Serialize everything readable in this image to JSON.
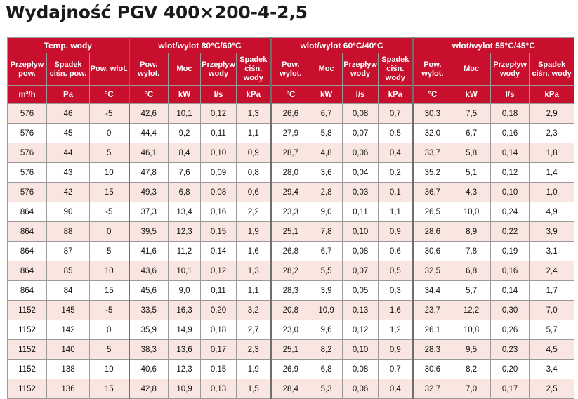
{
  "title": "Wydajność PGV 400×200-4-2,5",
  "header": {
    "groups": [
      "Temp. wody",
      "wlot/wylot 80°C/60°C",
      "wlot/wylot 60°C/40°C",
      "wlot/wylot 55°C/45°C"
    ],
    "columns": [
      "Przepływ pow.",
      "Spadek ciśn. pow.",
      "Pow. wlot.",
      "Pow. wylot.",
      "Moc",
      "Przepływ wody",
      "Spadek ciśn. wody",
      "Pow. wylot.",
      "Moc",
      "Przepływ wody",
      "Spadek ciśn. wody",
      "Pow. wylot.",
      "Moc",
      "Przepływ wody",
      "Spadek ciśn. wody"
    ],
    "units": [
      "m³/h",
      "Pa",
      "°C",
      "°C",
      "kW",
      "l/s",
      "kPa",
      "°C",
      "kW",
      "l/s",
      "kPa",
      "°C",
      "kW",
      "l/s",
      "kPa"
    ]
  },
  "rows": [
    [
      "576",
      "46",
      "-5",
      "42,6",
      "10,1",
      "0,12",
      "1,3",
      "26,6",
      "6,7",
      "0,08",
      "0,7",
      "30,3",
      "7,5",
      "0,18",
      "2,9"
    ],
    [
      "576",
      "45",
      "0",
      "44,4",
      "9,2",
      "0,11",
      "1,1",
      "27,9",
      "5,8",
      "0,07",
      "0,5",
      "32,0",
      "6,7",
      "0,16",
      "2,3"
    ],
    [
      "576",
      "44",
      "5",
      "46,1",
      "8,4",
      "0,10",
      "0,9",
      "28,7",
      "4,8",
      "0,06",
      "0,4",
      "33,7",
      "5,8",
      "0,14",
      "1,8"
    ],
    [
      "576",
      "43",
      "10",
      "47,8",
      "7,6",
      "0,09",
      "0,8",
      "28,0",
      "3,6",
      "0,04",
      "0,2",
      "35,2",
      "5,1",
      "0,12",
      "1,4"
    ],
    [
      "576",
      "42",
      "15",
      "49,3",
      "6,8",
      "0,08",
      "0,6",
      "29,4",
      "2,8",
      "0,03",
      "0,1",
      "36,7",
      "4,3",
      "0,10",
      "1,0"
    ],
    [
      "864",
      "90",
      "-5",
      "37,3",
      "13,4",
      "0,16",
      "2,2",
      "23,3",
      "9,0",
      "0,11",
      "1,1",
      "26,5",
      "10,0",
      "0,24",
      "4,9"
    ],
    [
      "864",
      "88",
      "0",
      "39,5",
      "12,3",
      "0,15",
      "1,9",
      "25,1",
      "7,8",
      "0,10",
      "0,9",
      "28,6",
      "8,9",
      "0,22",
      "3,9"
    ],
    [
      "864",
      "87",
      "5",
      "41,6",
      "11,2",
      "0,14",
      "1,6",
      "26,8",
      "6,7",
      "0,08",
      "0,6",
      "30,6",
      "7,8",
      "0,19",
      "3,1"
    ],
    [
      "864",
      "85",
      "10",
      "43,6",
      "10,1",
      "0,12",
      "1,3",
      "28,2",
      "5,5",
      "0,07",
      "0,5",
      "32,5",
      "6,8",
      "0,16",
      "2,4"
    ],
    [
      "864",
      "84",
      "15",
      "45,6",
      "9,0",
      "0,11",
      "1,1",
      "28,3",
      "3,9",
      "0,05",
      "0,3",
      "34,4",
      "5,7",
      "0,14",
      "1,7"
    ],
    [
      "1152",
      "145",
      "-5",
      "33,5",
      "16,3",
      "0,20",
      "3,2",
      "20,8",
      "10,9",
      "0,13",
      "1,6",
      "23,7",
      "12,2",
      "0,30",
      "7,0"
    ],
    [
      "1152",
      "142",
      "0",
      "35,9",
      "14,9",
      "0,18",
      "2,7",
      "23,0",
      "9,6",
      "0,12",
      "1,2",
      "26,1",
      "10,8",
      "0,26",
      "5,7"
    ],
    [
      "1152",
      "140",
      "5",
      "38,3",
      "13,6",
      "0,17",
      "2,3",
      "25,1",
      "8,2",
      "0,10",
      "0,9",
      "28,3",
      "9,5",
      "0,23",
      "4,5"
    ],
    [
      "1152",
      "138",
      "10",
      "40,6",
      "12,3",
      "0,15",
      "1,9",
      "26,9",
      "6,8",
      "0,08",
      "0,7",
      "30,6",
      "8,2",
      "0,20",
      "3,4"
    ],
    [
      "1152",
      "136",
      "15",
      "42,8",
      "10,9",
      "0,13",
      "1,5",
      "28,4",
      "5,3",
      "0,06",
      "0,4",
      "32,7",
      "7,0",
      "0,17",
      "2,5"
    ]
  ],
  "colors": {
    "header_bg": "#c8102e",
    "header_text": "#ffffff",
    "alt_row_bg": "#f9e6e0",
    "border": "#9a9a9a"
  }
}
